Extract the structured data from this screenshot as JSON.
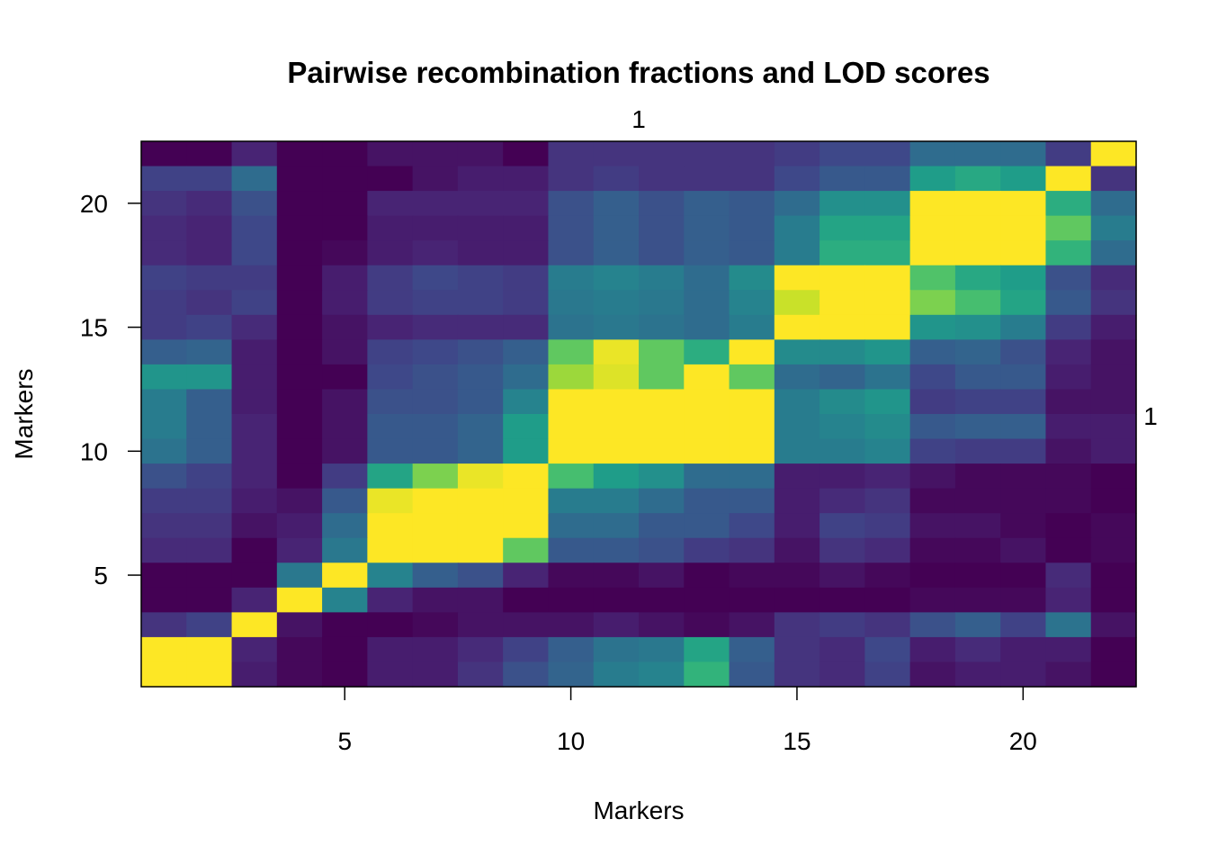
{
  "chart_data": {
    "type": "heatmap",
    "title": "Pairwise recombination fractions and LOD scores",
    "xlabel": "Markers",
    "ylabel": "Markers",
    "top_label": "1",
    "right_label": "1",
    "n_markers": 22,
    "xlim": [
      0.5,
      22.5
    ],
    "ylim": [
      0.5,
      22.5
    ],
    "x_ticks": [
      5,
      10,
      15,
      20
    ],
    "y_ticks": [
      5,
      10,
      15,
      20
    ],
    "legend": "none",
    "grid": false,
    "colormap": [
      "#440154",
      "#482878",
      "#3e4989",
      "#31688e",
      "#26828e",
      "#1f9e89",
      "#35b779",
      "#6ece58",
      "#b5de2b",
      "#fde725"
    ],
    "value_range": [
      0,
      1
    ],
    "rows_top_to_bottom": [
      [
        0.0,
        0.0,
        0.1,
        0.0,
        0.0,
        0.05,
        0.05,
        0.05,
        0.0,
        0.15,
        0.15,
        0.15,
        0.15,
        0.15,
        0.18,
        0.22,
        0.22,
        0.35,
        0.35,
        0.35,
        0.18,
        1.0
      ],
      [
        0.2,
        0.2,
        0.35,
        0.0,
        0.0,
        0.0,
        0.05,
        0.08,
        0.08,
        0.15,
        0.18,
        0.15,
        0.15,
        0.15,
        0.22,
        0.28,
        0.28,
        0.55,
        0.6,
        0.55,
        1.0,
        0.15
      ],
      [
        0.15,
        0.12,
        0.25,
        0.0,
        0.0,
        0.1,
        0.1,
        0.1,
        0.1,
        0.25,
        0.3,
        0.25,
        0.3,
        0.28,
        0.35,
        0.5,
        0.5,
        1.0,
        1.0,
        1.0,
        0.62,
        0.35
      ],
      [
        0.12,
        0.1,
        0.22,
        0.0,
        0.0,
        0.08,
        0.08,
        0.08,
        0.08,
        0.25,
        0.3,
        0.25,
        0.3,
        0.28,
        0.42,
        0.58,
        0.58,
        1.0,
        1.0,
        1.0,
        0.75,
        0.42
      ],
      [
        0.12,
        0.1,
        0.22,
        0.0,
        0.02,
        0.08,
        0.1,
        0.08,
        0.08,
        0.25,
        0.3,
        0.25,
        0.3,
        0.28,
        0.42,
        0.62,
        0.62,
        1.0,
        1.0,
        1.0,
        0.65,
        0.35
      ],
      [
        0.2,
        0.18,
        0.18,
        0.0,
        0.08,
        0.18,
        0.22,
        0.2,
        0.18,
        0.42,
        0.45,
        0.42,
        0.35,
        0.48,
        1.0,
        1.0,
        1.0,
        0.72,
        0.6,
        0.55,
        0.25,
        0.12
      ],
      [
        0.18,
        0.15,
        0.2,
        0.0,
        0.08,
        0.18,
        0.2,
        0.2,
        0.18,
        0.4,
        0.42,
        0.4,
        0.35,
        0.45,
        0.92,
        1.0,
        1.0,
        0.8,
        0.7,
        0.58,
        0.28,
        0.15
      ],
      [
        0.18,
        0.2,
        0.12,
        0.0,
        0.05,
        0.1,
        0.12,
        0.12,
        0.12,
        0.38,
        0.4,
        0.38,
        0.35,
        0.42,
        1.0,
        1.0,
        1.0,
        0.52,
        0.5,
        0.42,
        0.18,
        0.08
      ],
      [
        0.3,
        0.32,
        0.08,
        0.0,
        0.05,
        0.2,
        0.22,
        0.25,
        0.3,
        0.75,
        0.97,
        0.75,
        0.62,
        1.0,
        0.48,
        0.48,
        0.52,
        0.3,
        0.32,
        0.25,
        0.1,
        0.05
      ],
      [
        0.52,
        0.52,
        0.08,
        0.0,
        0.0,
        0.22,
        0.25,
        0.28,
        0.35,
        0.85,
        0.95,
        0.75,
        1.0,
        0.75,
        0.35,
        0.32,
        0.38,
        0.22,
        0.28,
        0.28,
        0.08,
        0.05
      ],
      [
        0.42,
        0.3,
        0.08,
        0.0,
        0.05,
        0.25,
        0.25,
        0.28,
        0.45,
        1.0,
        1.0,
        1.0,
        1.0,
        1.0,
        0.42,
        0.48,
        0.52,
        0.18,
        0.2,
        0.2,
        0.05,
        0.05
      ],
      [
        0.42,
        0.3,
        0.1,
        0.0,
        0.05,
        0.28,
        0.28,
        0.32,
        0.55,
        1.0,
        1.0,
        1.0,
        1.0,
        1.0,
        0.42,
        0.45,
        0.48,
        0.28,
        0.3,
        0.3,
        0.08,
        0.08
      ],
      [
        0.38,
        0.3,
        0.1,
        0.0,
        0.05,
        0.28,
        0.28,
        0.32,
        0.55,
        1.0,
        1.0,
        1.0,
        1.0,
        1.0,
        0.42,
        0.42,
        0.45,
        0.2,
        0.18,
        0.18,
        0.05,
        0.08
      ],
      [
        0.25,
        0.2,
        0.1,
        0.0,
        0.18,
        0.58,
        0.8,
        0.97,
        1.0,
        0.7,
        0.55,
        0.5,
        0.35,
        0.35,
        0.08,
        0.08,
        0.1,
        0.05,
        0.02,
        0.02,
        0.02,
        0.0
      ],
      [
        0.18,
        0.18,
        0.08,
        0.05,
        0.28,
        0.97,
        1.0,
        1.0,
        1.0,
        0.42,
        0.42,
        0.35,
        0.28,
        0.28,
        0.08,
        0.12,
        0.15,
        0.02,
        0.02,
        0.02,
        0.02,
        0.0
      ],
      [
        0.15,
        0.15,
        0.05,
        0.08,
        0.35,
        1.0,
        1.0,
        1.0,
        1.0,
        0.35,
        0.35,
        0.28,
        0.28,
        0.22,
        0.08,
        0.2,
        0.18,
        0.05,
        0.05,
        0.02,
        0.0,
        0.02
      ],
      [
        0.12,
        0.12,
        0.0,
        0.1,
        0.4,
        1.0,
        1.0,
        1.0,
        0.75,
        0.28,
        0.28,
        0.25,
        0.18,
        0.15,
        0.05,
        0.15,
        0.12,
        0.02,
        0.02,
        0.05,
        0.0,
        0.02
      ],
      [
        0.0,
        0.0,
        0.0,
        0.4,
        1.0,
        0.45,
        0.3,
        0.25,
        0.1,
        0.02,
        0.02,
        0.05,
        0.0,
        0.02,
        0.02,
        0.05,
        0.02,
        0.0,
        0.0,
        0.0,
        0.12,
        0.0
      ],
      [
        0.0,
        0.0,
        0.1,
        1.0,
        0.45,
        0.1,
        0.05,
        0.05,
        0.0,
        0.0,
        0.0,
        0.0,
        0.0,
        0.0,
        0.0,
        0.0,
        0.0,
        0.02,
        0.02,
        0.02,
        0.1,
        0.0
      ],
      [
        0.15,
        0.2,
        1.0,
        0.05,
        0.0,
        0.0,
        0.02,
        0.05,
        0.05,
        0.05,
        0.08,
        0.05,
        0.02,
        0.05,
        0.15,
        0.18,
        0.15,
        0.25,
        0.3,
        0.2,
        0.38,
        0.05
      ],
      [
        1.0,
        1.0,
        0.1,
        0.02,
        0.0,
        0.08,
        0.08,
        0.12,
        0.2,
        0.3,
        0.38,
        0.4,
        0.58,
        0.3,
        0.15,
        0.12,
        0.22,
        0.08,
        0.12,
        0.08,
        0.08,
        0.0
      ],
      [
        1.0,
        1.0,
        0.08,
        0.02,
        0.0,
        0.08,
        0.08,
        0.15,
        0.25,
        0.32,
        0.42,
        0.45,
        0.65,
        0.28,
        0.15,
        0.12,
        0.2,
        0.05,
        0.08,
        0.08,
        0.05,
        0.0
      ]
    ]
  }
}
